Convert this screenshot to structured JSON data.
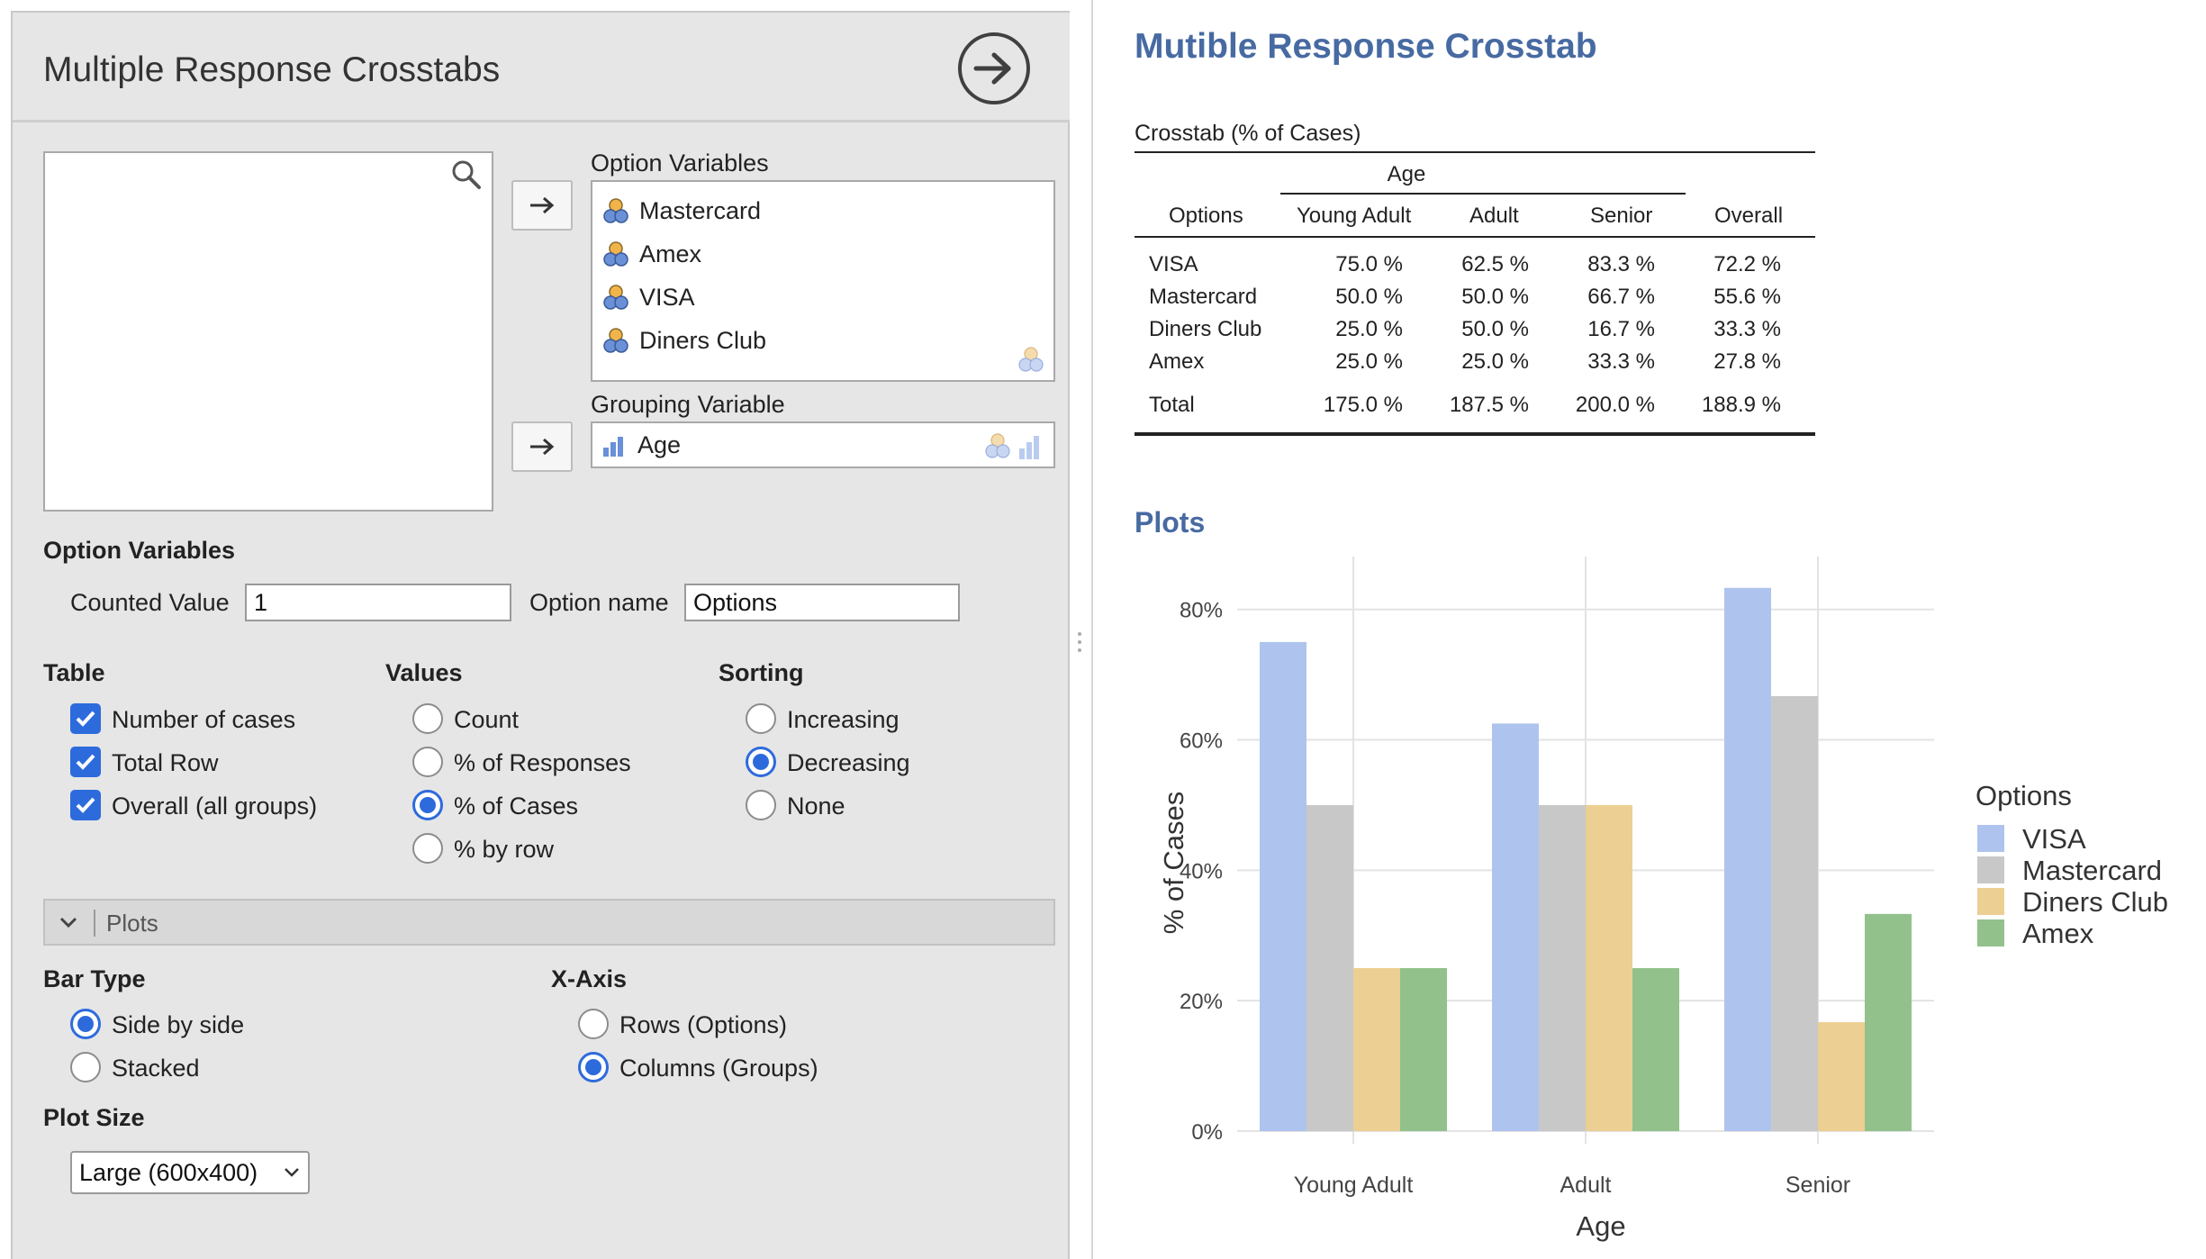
{
  "panel": {
    "title": "Multiple Response Crosstabs",
    "option_variables_label": "Option Variables",
    "option_variables": [
      "Mastercard",
      "Amex",
      "VISA",
      "Diners Club"
    ],
    "grouping_variable_label": "Grouping Variable",
    "grouping_variable": "Age",
    "option_section": "Option Variables",
    "counted_value_label": "Counted Value",
    "counted_value": "1",
    "option_name_label": "Option name",
    "option_name": "Options",
    "table_section": "Table",
    "table_options": [
      {
        "label": "Number of cases",
        "checked": true
      },
      {
        "label": "Total Row",
        "checked": true
      },
      {
        "label": "Overall (all groups)",
        "checked": true
      }
    ],
    "values_section": "Values",
    "values_options": [
      {
        "label": "Count",
        "selected": false
      },
      {
        "label": "% of Responses",
        "selected": false
      },
      {
        "label": "% of Cases",
        "selected": true
      },
      {
        "label": "% by row",
        "selected": false
      }
    ],
    "sorting_section": "Sorting",
    "sorting_options": [
      {
        "label": "Increasing",
        "selected": false
      },
      {
        "label": "Decreasing",
        "selected": true
      },
      {
        "label": "None",
        "selected": false
      }
    ],
    "plots_section": "Plots",
    "bar_type_section": "Bar Type",
    "bar_type_options": [
      {
        "label": "Side by side",
        "selected": true
      },
      {
        "label": "Stacked",
        "selected": false
      }
    ],
    "xaxis_section": "X-Axis",
    "xaxis_options": [
      {
        "label": "Rows (Options)",
        "selected": false
      },
      {
        "label": "Columns (Groups)",
        "selected": true
      }
    ],
    "plot_size_section": "Plot Size",
    "plot_size_value": "Large (600x400)"
  },
  "results": {
    "title": "Mutible Response Crosstab",
    "table_caption": "Crosstab (% of Cases)",
    "group_header": "Age",
    "columns": [
      "Options",
      "Young Adult",
      "Adult",
      "Senior",
      "Overall"
    ],
    "rows": [
      {
        "label": "VISA",
        "values": [
          "75.0 %",
          "62.5 %",
          "83.3 %",
          "72.2 %"
        ]
      },
      {
        "label": "Mastercard",
        "values": [
          "50.0 %",
          "50.0 %",
          "66.7 %",
          "55.6 %"
        ]
      },
      {
        "label": "Diners Club",
        "values": [
          "25.0 %",
          "50.0 %",
          "16.7 %",
          "33.3 %"
        ]
      },
      {
        "label": "Amex",
        "values": [
          "25.0 %",
          "25.0 %",
          "33.3 %",
          "27.8 %"
        ]
      }
    ],
    "total_row": {
      "label": "Total",
      "values": [
        "175.0 %",
        "187.5 %",
        "200.0 %",
        "188.9 %"
      ]
    },
    "plots_heading": "Plots"
  },
  "colors": {
    "accent": "#2d6bdd",
    "results_heading": "#476aa2",
    "VISA": "#aec4ee",
    "Mastercard": "#c8c8c8",
    "Diners Club": "#eccf92",
    "Amex": "#92c18c"
  },
  "chart_data": {
    "type": "bar",
    "categories": [
      "Young Adult",
      "Adult",
      "Senior"
    ],
    "series": [
      {
        "name": "VISA",
        "values": [
          75.0,
          62.5,
          83.3
        ]
      },
      {
        "name": "Mastercard",
        "values": [
          50.0,
          50.0,
          66.7
        ]
      },
      {
        "name": "Diners Club",
        "values": [
          25.0,
          50.0,
          16.7
        ]
      },
      {
        "name": "Amex",
        "values": [
          25.0,
          25.0,
          33.3
        ]
      }
    ],
    "xlabel": "Age",
    "ylabel": "% of Cases",
    "ylim": [
      0,
      87
    ],
    "yticks": [
      "0%",
      "20%",
      "40%",
      "60%",
      "80%"
    ],
    "legend_title": "Options",
    "legend_position": "right",
    "grid": true
  }
}
